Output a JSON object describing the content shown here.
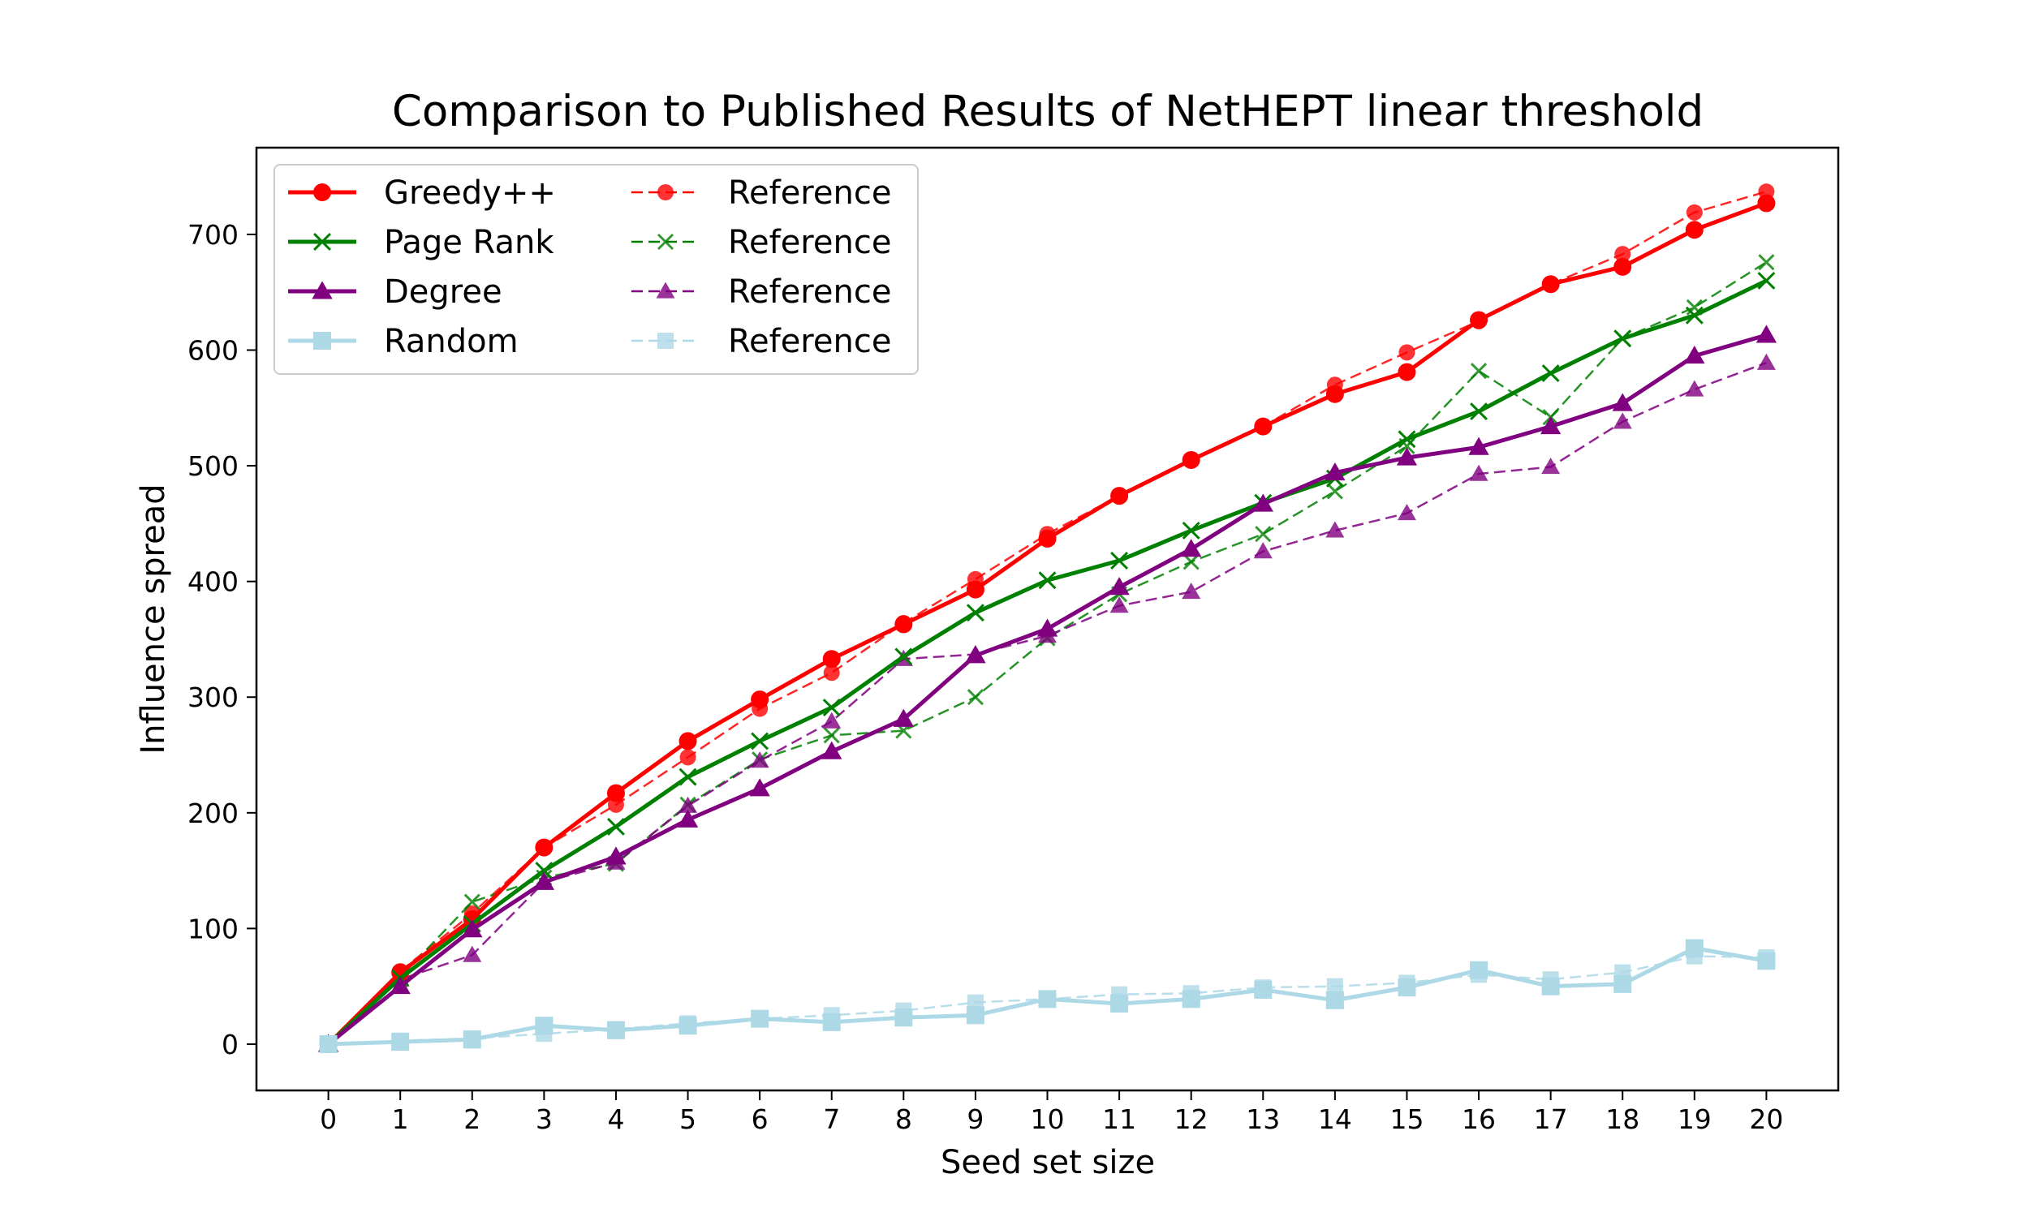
{
  "chart_data": {
    "type": "line",
    "title": "Comparison to Published Results of NetHEPT linear threshold",
    "xlabel": "Seed set size",
    "ylabel": "Influence spread",
    "xlim": [
      -1,
      21
    ],
    "ylim": [
      -40,
      775
    ],
    "x_ticks": [
      0,
      1,
      2,
      3,
      4,
      5,
      6,
      7,
      8,
      9,
      10,
      11,
      12,
      13,
      14,
      15,
      16,
      17,
      18,
      19,
      20
    ],
    "y_ticks": [
      0,
      100,
      200,
      300,
      400,
      500,
      600,
      700
    ],
    "grid": false,
    "legend": {
      "position": "upper-left",
      "columns": 2
    },
    "x": [
      0,
      1,
      2,
      3,
      4,
      5,
      6,
      7,
      8,
      9,
      10,
      11,
      12,
      13,
      14,
      15,
      16,
      17,
      18,
      19,
      20
    ],
    "series": [
      {
        "name": "Greedy++",
        "color": "#ff0000",
        "marker": "circle",
        "style": "solid",
        "values": [
          0,
          62,
          108,
          170,
          217,
          262,
          298,
          333,
          363,
          393,
          437,
          474,
          505,
          534,
          562,
          581,
          626,
          657,
          672,
          704,
          727
        ]
      },
      {
        "name": "Page Rank",
        "color": "#008000",
        "marker": "x",
        "style": "solid",
        "values": [
          0,
          57,
          104,
          150,
          188,
          231,
          262,
          291,
          335,
          373,
          401,
          418,
          444,
          468,
          489,
          523,
          547,
          580,
          610,
          630,
          660
        ]
      },
      {
        "name": "Degree",
        "color": "#800080",
        "marker": "triangle",
        "style": "solid",
        "values": [
          0,
          50,
          99,
          140,
          162,
          194,
          221,
          253,
          281,
          336,
          359,
          395,
          428,
          467,
          494,
          507,
          516,
          534,
          554,
          595,
          613
        ]
      },
      {
        "name": "Random",
        "color": "#add8e6",
        "marker": "square",
        "style": "solid",
        "values": [
          0,
          2,
          4,
          16,
          12,
          16,
          22,
          19,
          23,
          25,
          39,
          35,
          39,
          47,
          38,
          49,
          64,
          50,
          52,
          83,
          72
        ]
      },
      {
        "name": "Reference",
        "color": "#ff0000",
        "marker": "circle",
        "style": "dashed",
        "values": [
          0,
          63,
          113,
          170,
          207,
          248,
          290,
          321,
          364,
          402,
          441,
          474,
          505,
          534,
          570,
          598,
          625,
          657,
          683,
          719,
          737
        ]
      },
      {
        "name": "Reference",
        "color": "#008000",
        "marker": "x",
        "style": "dashed",
        "values": [
          0,
          58,
          123,
          144,
          156,
          207,
          246,
          267,
          271,
          300,
          351,
          389,
          417,
          441,
          478,
          517,
          582,
          542,
          610,
          637,
          676
        ]
      },
      {
        "name": "Reference",
        "color": "#800080",
        "marker": "triangle",
        "style": "dashed",
        "values": [
          0,
          56,
          77,
          140,
          157,
          206,
          245,
          279,
          333,
          337,
          353,
          379,
          391,
          426,
          444,
          459,
          493,
          499,
          538,
          566,
          589
        ]
      },
      {
        "name": "Reference",
        "color": "#add8e6",
        "marker": "square",
        "style": "dashed",
        "values": [
          0,
          3,
          5,
          9,
          13,
          18,
          22,
          25,
          29,
          36,
          39,
          43,
          44,
          49,
          50,
          53,
          60,
          56,
          62,
          76,
          75
        ]
      }
    ]
  }
}
